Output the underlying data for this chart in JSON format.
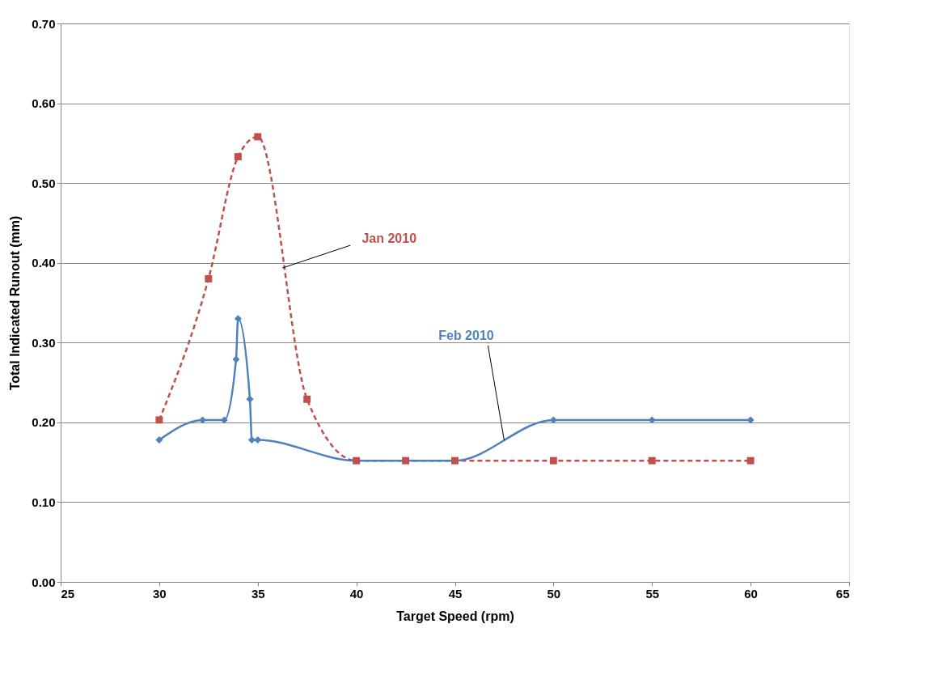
{
  "chart_data": {
    "type": "line",
    "xlabel": "Target Speed (rpm)",
    "ylabel": "Total Indicated Runout (mm)",
    "xlim": [
      25,
      65
    ],
    "xticks": [
      25,
      30,
      35,
      40,
      45,
      50,
      55,
      60,
      65
    ],
    "ylim": [
      0,
      0.7
    ],
    "yticks": [
      {
        "value": 0,
        "label": "0.00"
      },
      {
        "value": 0.1,
        "label": "0.10"
      },
      {
        "value": 0.2,
        "label": "0.20"
      },
      {
        "value": 0.3,
        "label": "0.30"
      },
      {
        "value": 0.4,
        "label": "0.40"
      },
      {
        "value": 0.5,
        "label": "0.50"
      },
      {
        "value": 0.6,
        "label": "0.60"
      },
      {
        "value": 0.7,
        "label": "0.70"
      }
    ],
    "grid": "y",
    "legend": false,
    "series": [
      {
        "name": "Jan 2010",
        "color": "#c0504d",
        "marker": "square",
        "line_style": "dashed",
        "x": [
          30,
          32.5,
          34,
          35,
          37.5,
          40,
          42.5,
          45,
          50,
          55,
          60
        ],
        "values": [
          0.203,
          0.38,
          0.533,
          0.558,
          0.229,
          0.152,
          0.152,
          0.152,
          0.152,
          0.152,
          0.152
        ]
      },
      {
        "name": "Feb 2010",
        "color": "#4f81bd",
        "marker": "diamond",
        "line_style": "solid",
        "x": [
          30,
          32.2,
          33.3,
          33.9,
          34,
          34.6,
          34.7,
          35,
          40,
          45,
          50,
          55,
          60
        ],
        "values": [
          0.178,
          0.203,
          0.203,
          0.279,
          0.33,
          0.229,
          0.178,
          0.178,
          0.152,
          0.152,
          0.203,
          0.203,
          0.203
        ]
      }
    ]
  }
}
